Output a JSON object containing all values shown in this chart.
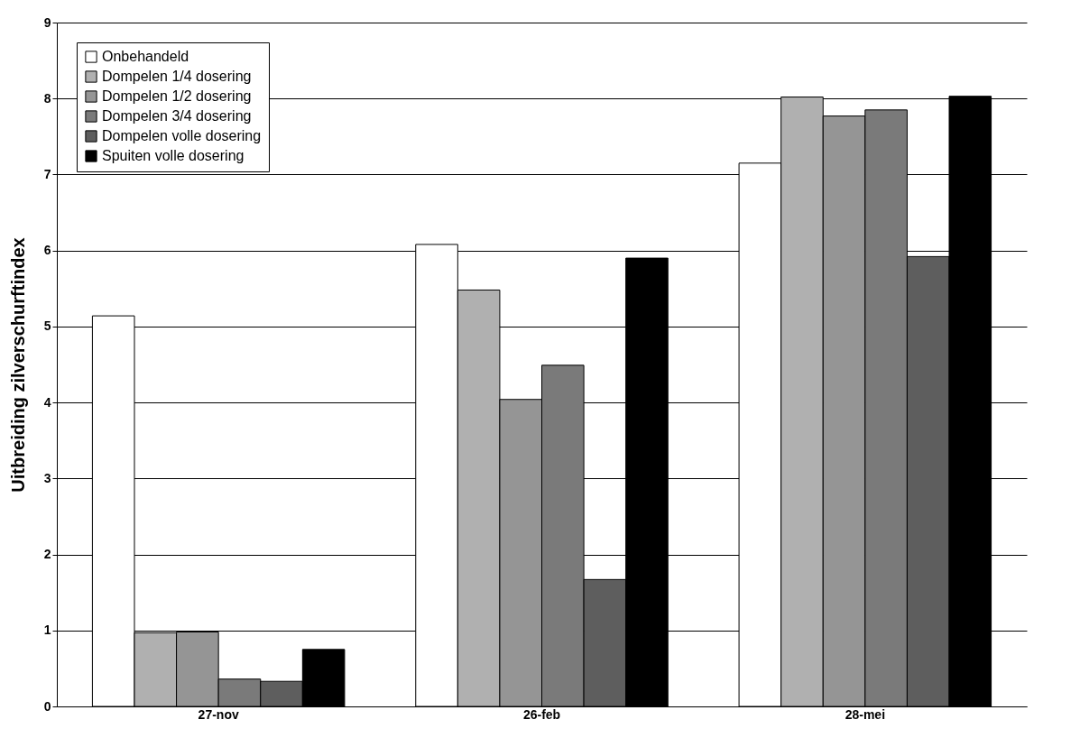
{
  "chart_data": {
    "type": "bar",
    "ylabel": "Uitbreiding zilverschurftindex",
    "categories": [
      "27-nov",
      "26-feb",
      "28-mei"
    ],
    "series": [
      {
        "name": "Onbehandeld",
        "color": "#ffffff",
        "values": [
          5.14,
          6.08,
          7.15
        ]
      },
      {
        "name": "Dompelen 1/4 dosering",
        "color": "#b0b0b0",
        "values": [
          0.97,
          5.48,
          8.02
        ]
      },
      {
        "name": "Dompelen 1/2 dosering",
        "color": "#959595",
        "values": [
          0.98,
          4.04,
          7.77
        ]
      },
      {
        "name": "Dompelen 3/4 dosering",
        "color": "#7a7a7a",
        "values": [
          0.36,
          4.49,
          7.85
        ]
      },
      {
        "name": "Dompelen volle dosering",
        "color": "#5e5e5e",
        "values": [
          0.33,
          1.67,
          5.92
        ]
      },
      {
        "name": "Spuiten volle dosering",
        "color": "#000000",
        "values": [
          0.75,
          5.9,
          8.03
        ]
      }
    ],
    "ylim": [
      0,
      9
    ],
    "yticks": [
      0,
      1,
      2,
      3,
      4,
      5,
      6,
      7,
      8,
      9
    ],
    "grid": "y",
    "legend": "top left"
  }
}
